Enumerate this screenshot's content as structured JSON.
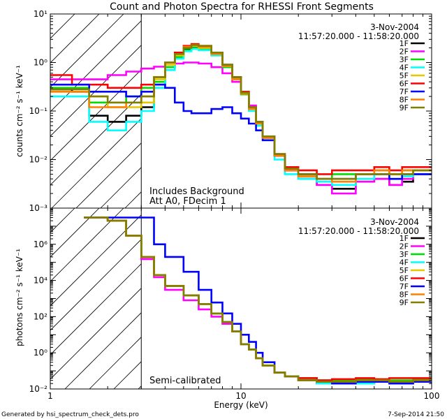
{
  "title": "Count and Photon Spectra for RHESSI Front Segments",
  "footer": {
    "generated": "Generated by hsi_spectrum_check_dets.pro",
    "date": "7-Sep-2014 21:50"
  },
  "colors": {
    "1F": "#000000",
    "2F": "#ff00ff",
    "3F": "#00dd00",
    "4F": "#00ffff",
    "5F": "#e6c800",
    "6F": "#ff0000",
    "7F": "#0000ff",
    "8F": "#ff8000",
    "9F": "#808000"
  },
  "chart_data": [
    {
      "type": "line",
      "panel": "top",
      "title": "",
      "date": "3-Nov-2004",
      "time_range": "11:57:20.000 - 11:58:20.000",
      "xlabel": "",
      "ylabel": "counts cm⁻² s⁻¹ keV⁻¹",
      "xscale": "log",
      "yscale": "log",
      "xlim": [
        1,
        100
      ],
      "ylim": [
        0.001,
        10
      ],
      "yticks": [
        0.001,
        0.01,
        0.1,
        1,
        10
      ],
      "ytick_labels": [
        "10⁻³",
        "10⁻²",
        "10⁻¹",
        "10⁰",
        "10¹"
      ],
      "xticks": [
        1,
        10,
        100
      ],
      "xtick_labels": [],
      "threshold_keV": 3,
      "annotation": [
        "Includes Background",
        "Att A0, FDecim 1"
      ],
      "legend": [
        "1F",
        "2F",
        "3F",
        "4F",
        "5F",
        "6F",
        "7F",
        "8F",
        "9F"
      ],
      "x": [
        1.0,
        1.3,
        1.6,
        2.0,
        2.5,
        3.0,
        3.5,
        4.0,
        4.5,
        5.0,
        5.5,
        6.0,
        7.0,
        8.0,
        9.0,
        10.0,
        11.0,
        12.0,
        13.0,
        15.0,
        17.0,
        20.0,
        25.0,
        30.0,
        40.0,
        50.0,
        60.0,
        70.0,
        80.0,
        100.0
      ],
      "series": [
        {
          "name": "1F",
          "values": [
            0.28,
            0.25,
            0.08,
            0.06,
            0.08,
            0.12,
            0.35,
            0.8,
            1.3,
            1.9,
            2.1,
            2.0,
            1.6,
            0.9,
            0.5,
            0.25,
            0.12,
            0.06,
            0.03,
            0.012,
            0.006,
            0.004,
            0.003,
            0.0025,
            0.0035,
            0.004,
            0.003,
            0.0035,
            0.005,
            0.005
          ]
        },
        {
          "name": "2F",
          "values": [
            0.45,
            0.45,
            0.45,
            0.55,
            0.65,
            0.75,
            0.82,
            0.9,
            0.95,
            1.0,
            1.0,
            0.95,
            0.8,
            0.6,
            0.4,
            0.25,
            0.13,
            0.06,
            0.03,
            0.012,
            0.006,
            0.004,
            0.003,
            0.002,
            0.0035,
            0.004,
            0.003,
            0.004,
            0.005,
            0.005
          ]
        },
        {
          "name": "3F",
          "values": [
            0.3,
            0.3,
            0.15,
            0.15,
            0.2,
            0.3,
            0.4,
            0.8,
            1.3,
            1.8,
            2.0,
            1.9,
            1.4,
            0.8,
            0.45,
            0.22,
            0.11,
            0.055,
            0.028,
            0.012,
            0.007,
            0.005,
            0.004,
            0.005,
            0.005,
            0.006,
            0.005,
            0.006,
            0.006,
            0.006
          ]
        },
        {
          "name": "4F",
          "values": [
            0.2,
            0.2,
            0.06,
            0.04,
            0.06,
            0.1,
            0.3,
            0.7,
            1.2,
            1.7,
            1.9,
            1.8,
            1.4,
            0.85,
            0.45,
            0.23,
            0.1,
            0.05,
            0.025,
            0.01,
            0.005,
            0.004,
            0.0035,
            0.003,
            0.004,
            0.005,
            0.004,
            0.0045,
            0.005,
            0.005
          ]
        },
        {
          "name": "5F",
          "values": [
            0.25,
            0.25,
            0.2,
            0.12,
            0.12,
            0.15,
            0.45,
            0.9,
            1.4,
            2.0,
            2.2,
            2.0,
            1.5,
            0.85,
            0.45,
            0.23,
            0.11,
            0.055,
            0.028,
            0.012,
            0.006,
            0.0045,
            0.004,
            0.004,
            0.005,
            0.005,
            0.005,
            0.005,
            0.006,
            0.006
          ]
        },
        {
          "name": "6F",
          "values": [
            0.55,
            0.35,
            0.35,
            0.3,
            0.3,
            0.35,
            0.5,
            1.0,
            1.6,
            2.2,
            2.4,
            2.2,
            1.6,
            0.9,
            0.5,
            0.25,
            0.12,
            0.06,
            0.03,
            0.013,
            0.007,
            0.006,
            0.005,
            0.006,
            0.006,
            0.007,
            0.006,
            0.007,
            0.007,
            0.007
          ]
        },
        {
          "name": "7F",
          "values": [
            0.35,
            0.35,
            0.25,
            0.25,
            0.2,
            0.25,
            0.35,
            0.3,
            0.15,
            0.1,
            0.09,
            0.09,
            0.11,
            0.12,
            0.09,
            0.07,
            0.055,
            0.04,
            0.025,
            0.012,
            0.006,
            0.005,
            0.004,
            0.004,
            0.005,
            0.005,
            0.004,
            0.005,
            0.005,
            0.005
          ]
        },
        {
          "name": "8F",
          "values": [
            0.25,
            0.25,
            0.12,
            0.12,
            0.15,
            0.2,
            0.5,
            1.0,
            1.5,
            2.1,
            2.3,
            2.1,
            1.5,
            0.85,
            0.45,
            0.23,
            0.11,
            0.055,
            0.028,
            0.012,
            0.006,
            0.0045,
            0.004,
            0.0035,
            0.005,
            0.006,
            0.005,
            0.006,
            0.006,
            0.006
          ]
        },
        {
          "name": "9F",
          "values": [
            0.28,
            0.28,
            0.2,
            0.15,
            0.15,
            0.2,
            0.5,
            1.0,
            1.5,
            2.0,
            2.3,
            2.2,
            1.6,
            0.9,
            0.5,
            0.24,
            0.12,
            0.06,
            0.03,
            0.013,
            0.0065,
            0.005,
            0.004,
            0.004,
            0.005,
            0.005,
            0.005,
            0.005,
            0.006,
            0.006
          ]
        }
      ]
    },
    {
      "type": "line",
      "panel": "bottom",
      "title": "",
      "date": "3-Nov-2004",
      "time_range": "11:57:20.000 - 11:58:20.000",
      "xlabel": "Energy (keV)",
      "ylabel": "photons cm⁻² s⁻¹ keV⁻¹",
      "xscale": "log",
      "yscale": "log",
      "xlim": [
        1,
        100
      ],
      "ylim": [
        0.01,
        100000000
      ],
      "yticks": [
        0.01,
        1,
        100,
        10000,
        1000000
      ],
      "ytick_labels": [
        "10⁻²",
        "10⁰",
        "10²",
        "10⁴",
        "10⁶"
      ],
      "xticks": [
        1,
        10,
        100
      ],
      "xtick_labels": [
        "1",
        "10",
        "100"
      ],
      "threshold_keV": 3,
      "annotation": [
        "Semi-calibrated"
      ],
      "legend": [
        "1F",
        "2F",
        "3F",
        "4F",
        "5F",
        "6F",
        "7F",
        "8F",
        "9F"
      ],
      "x": [
        1.5,
        2.0,
        2.5,
        3.0,
        3.5,
        4.0,
        5.0,
        6.0,
        7.0,
        8.0,
        9.0,
        10.0,
        11.0,
        12.0,
        13.0,
        15.0,
        17.0,
        20.0,
        25.0,
        30.0,
        40.0,
        50.0,
        60.0,
        80.0,
        100.0
      ],
      "series": [
        {
          "name": "1F",
          "values": [
            30000000,
            20000000,
            3000000,
            200000,
            20000,
            5000,
            1500,
            500,
            150,
            50,
            15,
            3,
            1.5,
            0.5,
            0.2,
            0.08,
            0.05,
            0.03,
            0.02,
            0.02,
            0.02,
            0.025,
            0.02,
            0.025,
            0.02
          ]
        },
        {
          "name": "2F",
          "values": [
            30000000,
            20000000,
            3000000,
            150000,
            15000,
            3000,
            800,
            250,
            100,
            40,
            15,
            3,
            1.5,
            0.5,
            0.2,
            0.08,
            0.05,
            0.03,
            0.02,
            0.02,
            0.02,
            0.025,
            0.02,
            0.025,
            0.02
          ]
        },
        {
          "name": "3F",
          "values": [
            30000000,
            20000000,
            3000000,
            200000,
            20000,
            5000,
            1500,
            500,
            150,
            50,
            15,
            3,
            1.5,
            0.5,
            0.2,
            0.08,
            0.05,
            0.04,
            0.03,
            0.03,
            0.035,
            0.03,
            0.03,
            0.035,
            0.03
          ]
        },
        {
          "name": "4F",
          "values": [
            30000000,
            20000000,
            3000000,
            200000,
            20000,
            5000,
            1500,
            500,
            150,
            50,
            15,
            3,
            1.5,
            0.5,
            0.2,
            0.08,
            0.05,
            0.03,
            0.02,
            0.02,
            0.02,
            0.025,
            0.02,
            0.025,
            0.02
          ]
        },
        {
          "name": "5F",
          "values": [
            30000000,
            20000000,
            3000000,
            200000,
            20000,
            5000,
            1500,
            500,
            150,
            50,
            15,
            3,
            1.5,
            0.5,
            0.2,
            0.08,
            0.05,
            0.03,
            0.025,
            0.02,
            0.025,
            0.03,
            0.025,
            0.03,
            0.025
          ]
        },
        {
          "name": "6F",
          "values": [
            30000000,
            20000000,
            3000000,
            200000,
            20000,
            5000,
            1500,
            500,
            150,
            50,
            15,
            3,
            1.5,
            0.5,
            0.2,
            0.08,
            0.05,
            0.04,
            0.03,
            0.035,
            0.04,
            0.035,
            0.04,
            0.04,
            0.035
          ]
        },
        {
          "name": "7F",
          "values": [
            30000000,
            30000000,
            30000000,
            30000000,
            1000000,
            200000,
            30000,
            3000,
            600,
            150,
            40,
            10,
            4,
            1,
            0.3,
            0.08,
            0.05,
            0.03,
            0.025,
            0.02,
            0.025,
            0.025,
            0.02,
            0.025,
            0.02
          ]
        },
        {
          "name": "8F",
          "values": [
            30000000,
            20000000,
            3000000,
            200000,
            20000,
            5000,
            1500,
            500,
            150,
            50,
            15,
            3,
            1.5,
            0.5,
            0.2,
            0.08,
            0.05,
            0.03,
            0.025,
            0.025,
            0.03,
            0.03,
            0.025,
            0.03,
            0.025
          ]
        },
        {
          "name": "9F",
          "values": [
            30000000,
            20000000,
            3000000,
            200000,
            20000,
            5000,
            1500,
            500,
            150,
            50,
            15,
            3,
            1.5,
            0.5,
            0.2,
            0.08,
            0.05,
            0.03,
            0.025,
            0.025,
            0.03,
            0.03,
            0.025,
            0.03,
            0.025
          ]
        }
      ]
    }
  ]
}
